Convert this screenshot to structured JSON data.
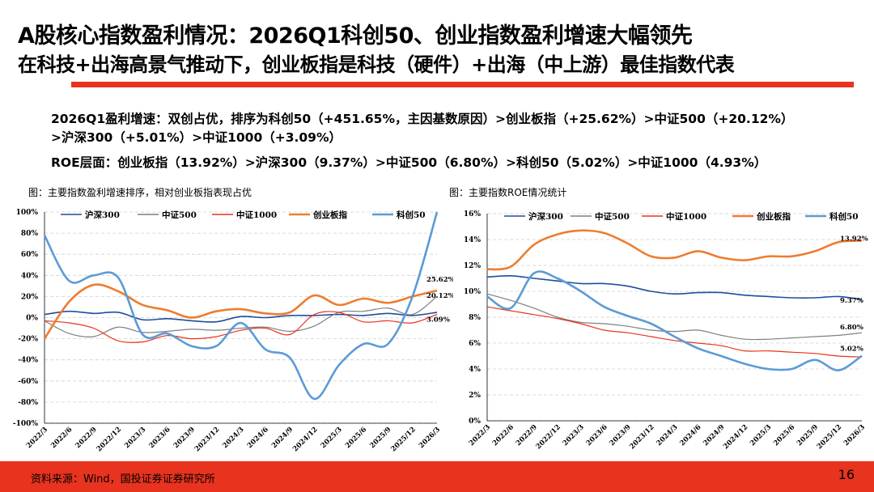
{
  "header": {
    "title": "A股核心指数盈利情况：2026Q1科创50、创业指数盈利增速大幅领先",
    "subtitle": "在科技+出海高景气推动下，创业板指是科技（硬件）+出海（中上游）最佳指数代表"
  },
  "bullets": {
    "line1": "2026Q1盈利增速：双创占优，排序为科创50（+451.65%，主因基数原因）>创业板指（+25.62%）>中证500（+20.12%）",
    "line2": ">沪深300（+5.01%）>中证1000（+3.09%）",
    "line3": "ROE层面：创业板指（13.92%）>沪深300（9.37%）>中证500（6.80%）>科创50（5.02%）>中证1000（4.93%）"
  },
  "captions": {
    "left": "图：主要指数盈利增速排序，相对创业板指表现占优",
    "right": "图：主要指数ROE情况统计"
  },
  "footer": {
    "source": "资料来源：Wind，国投证券证券研究所",
    "page": "16"
  },
  "colors": {
    "accent": "#e8331f",
    "沪深300": "#1f4e9c",
    "中证500": "#7f7f7f",
    "中证1000": "#e8331f",
    "创业板指": "#ed7d31",
    "科创50": "#5b9bd5"
  },
  "chart_data": [
    {
      "type": "line",
      "title": "",
      "x": [
        "2022/3",
        "2022/6",
        "2022/9",
        "2022/12",
        "2023/3",
        "2023/6",
        "2023/9",
        "2023/12",
        "2024/3",
        "2024/6",
        "2024/9",
        "2024/12",
        "2025/3",
        "2025/6",
        "2025/9",
        "2025/12",
        "2026/3"
      ],
      "yticks": [
        "100%",
        "80%",
        "60%",
        "40%",
        "20%",
        "0%",
        "-20%",
        "-40%",
        "-60%",
        "-80%",
        "-100%"
      ],
      "ylim": [
        -100,
        100
      ],
      "grid": true,
      "legend": "top",
      "series": [
        {
          "name": "沪深300",
          "values": [
            3,
            6,
            4,
            5,
            -2,
            -1,
            -3,
            -4,
            1,
            0,
            2,
            2,
            3,
            2,
            4,
            2,
            5.01
          ]
        },
        {
          "name": "中证500",
          "values": [
            -3,
            -15,
            -18,
            -9,
            -14,
            -13,
            -11,
            -12,
            -10,
            -9,
            -13,
            -8,
            5,
            6,
            9,
            3,
            20.12
          ]
        },
        {
          "name": "中证1000",
          "values": [
            -3,
            -5,
            -10,
            -22,
            -23,
            -17,
            -20,
            -18,
            -12,
            -10,
            -16,
            3,
            5,
            -4,
            -3,
            -5,
            3.09
          ]
        },
        {
          "name": "创业板指",
          "values": [
            -20,
            15,
            31,
            25,
            12,
            7,
            0,
            6,
            8,
            4,
            5,
            21,
            12,
            18,
            14,
            20,
            25.62
          ]
        },
        {
          "name": "科创50",
          "values": [
            78,
            35,
            40,
            38,
            -16,
            -15,
            -27,
            -27,
            -5,
            -30,
            -38,
            -77,
            -45,
            -25,
            -25,
            20,
            100
          ]
        }
      ],
      "data_labels": [
        "25.62%",
        "20.12%",
        "3.09%"
      ]
    },
    {
      "type": "line",
      "title": "",
      "x": [
        "2022/3",
        "2022/6",
        "2022/9",
        "2022/12",
        "2023/3",
        "2023/6",
        "2023/9",
        "2023/12",
        "2024/3",
        "2024/6",
        "2024/9",
        "2024/12",
        "2025/3",
        "2025/6",
        "2025/9",
        "2025/12",
        "2026/3"
      ],
      "yticks": [
        "16%",
        "14%",
        "12%",
        "10%",
        "8%",
        "6%",
        "4%",
        "2%",
        "0%"
      ],
      "ylim": [
        0,
        16
      ],
      "grid": true,
      "legend": "top",
      "series": [
        {
          "name": "沪深300",
          "values": [
            11.1,
            11.2,
            11.0,
            10.8,
            10.6,
            10.6,
            10.4,
            10.0,
            9.8,
            9.9,
            9.9,
            9.7,
            9.6,
            9.5,
            9.5,
            9.6,
            9.37
          ]
        },
        {
          "name": "中证500",
          "values": [
            9.8,
            9.3,
            8.7,
            8.0,
            7.6,
            7.5,
            7.3,
            7.0,
            6.9,
            7.0,
            6.6,
            6.3,
            6.3,
            6.4,
            6.5,
            6.6,
            6.8
          ]
        },
        {
          "name": "中证1000",
          "values": [
            8.8,
            8.5,
            8.2,
            7.9,
            7.5,
            7.0,
            6.8,
            6.5,
            6.2,
            6.0,
            5.8,
            5.4,
            5.4,
            5.3,
            5.2,
            5.0,
            4.93
          ]
        },
        {
          "name": "创业板指",
          "values": [
            11.7,
            11.9,
            13.6,
            14.4,
            14.7,
            14.5,
            13.7,
            12.7,
            12.6,
            13.1,
            12.6,
            12.4,
            12.7,
            12.7,
            13.1,
            13.8,
            13.92
          ]
        },
        {
          "name": "科创50",
          "values": [
            9.6,
            8.7,
            11.4,
            11.0,
            10.0,
            8.8,
            8.1,
            7.5,
            6.5,
            5.6,
            5.0,
            4.4,
            4.0,
            4.0,
            4.7,
            3.9,
            5.02
          ]
        }
      ],
      "data_labels": [
        "13.92%",
        "9.37%",
        "6.80%",
        "5.02%"
      ]
    }
  ]
}
